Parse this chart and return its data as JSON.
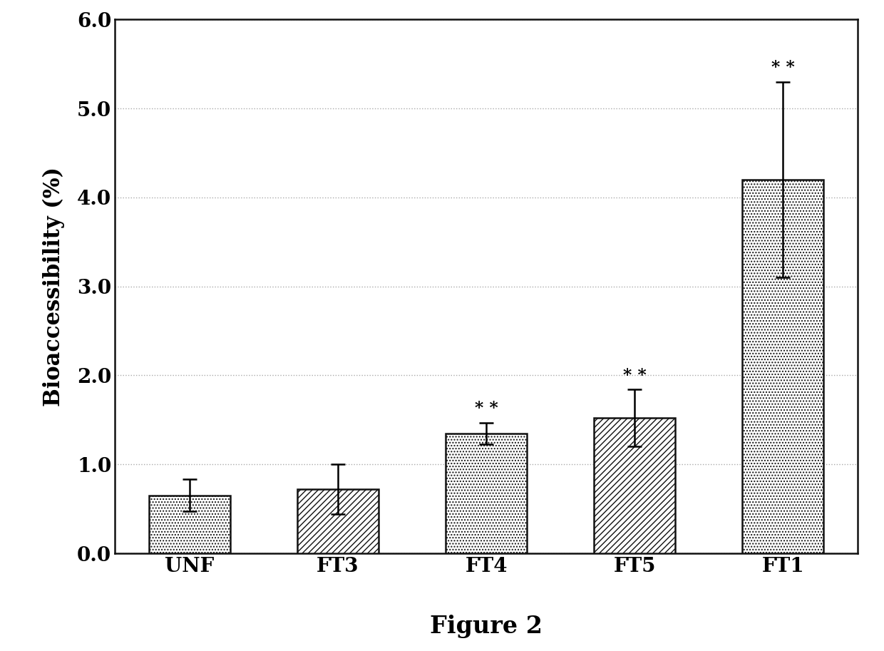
{
  "categories": [
    "UNF",
    "FT3",
    "FT4",
    "FT5",
    "FT1"
  ],
  "values": [
    0.65,
    0.72,
    1.35,
    1.52,
    4.2
  ],
  "errors": [
    0.18,
    0.28,
    0.12,
    0.32,
    1.1
  ],
  "significance": [
    false,
    false,
    true,
    true,
    true
  ],
  "ylabel": "Bioaccessibility (%)",
  "figure_label": "Figure 2",
  "ylim": [
    0.0,
    6.0
  ],
  "yticks": [
    0.0,
    1.0,
    2.0,
    3.0,
    4.0,
    5.0,
    6.0
  ],
  "background_color": "#ffffff",
  "bar_edge_color": "#111111",
  "grid_color": "#aaaaaa",
  "label_fontsize": 22,
  "tick_fontsize": 20,
  "figure_label_fontsize": 24,
  "sig_fontsize": 17,
  "hatch_patterns": [
    "....",
    "////",
    "....",
    "////",
    "...."
  ],
  "bar_width": 0.55
}
